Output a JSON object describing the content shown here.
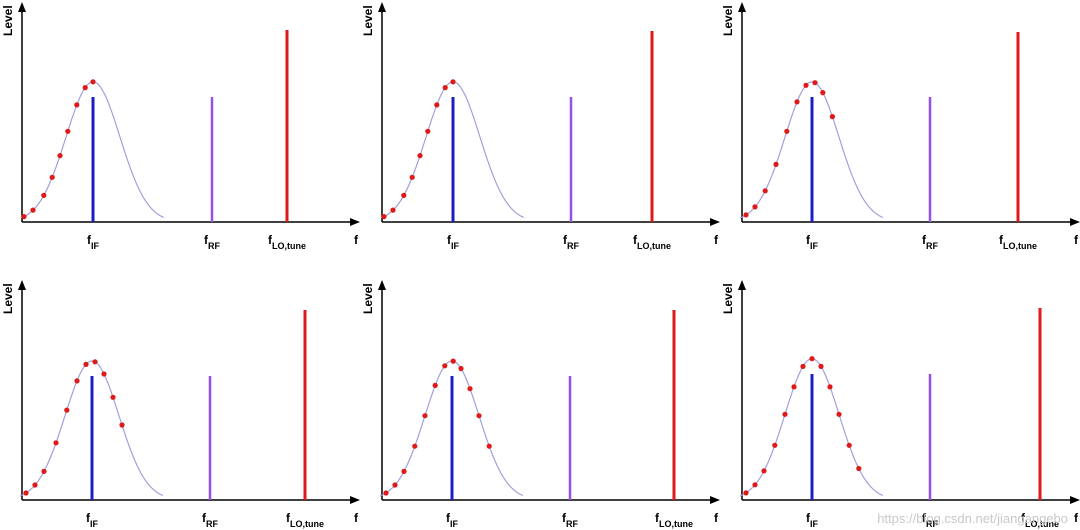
{
  "labels": {
    "y_axis": "Level",
    "x_axis": "f",
    "f_base": "f",
    "if_sub": "IF",
    "rf_sub": "RF",
    "lo_sub": "LO,tune"
  },
  "colors": {
    "axis": "#000000",
    "if_line": "#1c1cc8",
    "rf_line": "#9650e6",
    "lo_line": "#e01818",
    "curve": "#a0a0dc",
    "dots": "#e01818"
  },
  "watermark": "https://blog.csdn.net/jiangangebo",
  "chart_data": [
    {
      "type": "diagram",
      "if": {
        "level": 0.66
      },
      "rf": {
        "level": 0.66
      },
      "lo": {
        "level": 1.0
      },
      "gaussian": {
        "amplitude": 0.74,
        "center": 0.0,
        "width": 0.45
      },
      "sample_points": [
        -1.15,
        -1.0,
        -0.82,
        -0.68,
        -0.55,
        -0.42,
        -0.27,
        -0.13,
        0.0
      ]
    },
    {
      "type": "diagram",
      "if": {
        "level": 0.66
      },
      "rf": {
        "level": 0.66
      },
      "lo": {
        "level": 1.0
      },
      "gaussian": {
        "amplitude": 0.74,
        "center": 0.0,
        "width": 0.45
      },
      "sample_points": [
        -1.15,
        -1.0,
        -0.82,
        -0.68,
        -0.55,
        -0.42,
        -0.27,
        -0.13,
        0.0
      ]
    },
    {
      "type": "diagram",
      "if": {
        "level": 0.66
      },
      "rf": {
        "level": 0.66
      },
      "lo": {
        "level": 1.0
      },
      "gaussian": {
        "amplitude": 0.74,
        "center": 0.0,
        "width": 0.45
      },
      "sample_points": [
        -1.1,
        -0.95,
        -0.78,
        -0.6,
        -0.42,
        -0.25,
        -0.1,
        0.05,
        0.18,
        0.34
      ]
    },
    {
      "type": "diagram",
      "if": {
        "level": 0.66
      },
      "rf": {
        "level": 0.66
      },
      "lo": {
        "level": 1.0
      },
      "gaussian": {
        "amplitude": 0.74,
        "center": 0.0,
        "width": 0.45
      },
      "sample_points": [
        -1.1,
        -0.95,
        -0.8,
        -0.6,
        -0.42,
        -0.25,
        -0.1,
        0.05,
        0.2,
        0.35,
        0.5
      ]
    },
    {
      "type": "diagram",
      "if": {
        "level": 0.66
      },
      "rf": {
        "level": 0.66
      },
      "lo": {
        "level": 1.0
      },
      "gaussian": {
        "amplitude": 0.74,
        "center": 0.0,
        "width": 0.45
      },
      "sample_points": [
        -1.1,
        -0.95,
        -0.8,
        -0.62,
        -0.45,
        -0.28,
        -0.12,
        0.02,
        0.15,
        0.3,
        0.45,
        0.62
      ]
    },
    {
      "type": "diagram",
      "if": {
        "level": 0.66
      },
      "rf": {
        "level": 0.66
      },
      "lo": {
        "level": 1.0
      },
      "gaussian": {
        "amplitude": 0.74,
        "center": 0.0,
        "width": 0.45
      },
      "sample_points": [
        -1.1,
        -0.95,
        -0.8,
        -0.62,
        -0.45,
        -0.3,
        -0.15,
        0.0,
        0.15,
        0.3,
        0.45,
        0.62,
        0.78
      ]
    }
  ]
}
